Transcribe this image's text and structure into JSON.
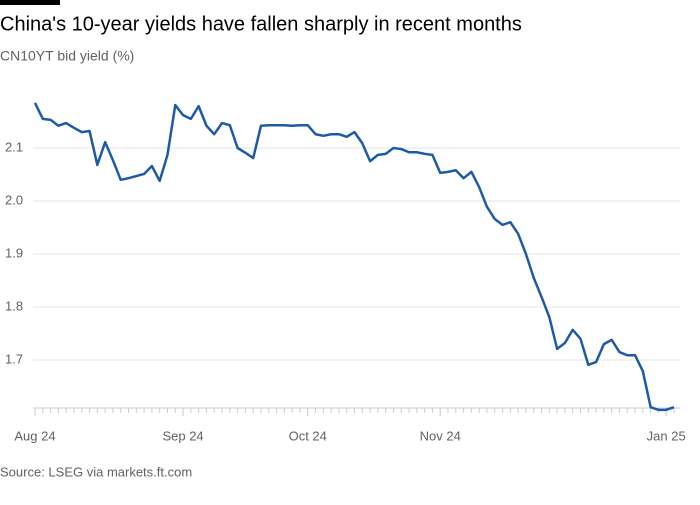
{
  "chart_data": {
    "type": "line",
    "title": "China's 10-year yields have fallen sharply in recent months",
    "subtitle": "CN10YT bid yield (%)",
    "source": "Source: LSEG via markets.ft.com",
    "categories": [
      "Aug 24",
      null,
      null,
      null,
      null,
      null,
      null,
      null,
      null,
      null,
      null,
      null,
      null,
      null,
      null,
      null,
      null,
      null,
      null,
      "Sep 24",
      null,
      null,
      null,
      null,
      null,
      null,
      null,
      null,
      null,
      null,
      null,
      null,
      null,
      null,
      null,
      "Oct 24",
      null,
      null,
      null,
      null,
      null,
      null,
      null,
      null,
      null,
      null,
      null,
      null,
      null,
      null,
      null,
      null,
      "Nov 24",
      null,
      null,
      null,
      null,
      null,
      null,
      null,
      null,
      null,
      null,
      null,
      null,
      null,
      null,
      null,
      null,
      null,
      null,
      null,
      null,
      null,
      null,
      null,
      null,
      null,
      null,
      null,
      null,
      "Jan 25",
      null
    ],
    "values": [
      2.185,
      2.155,
      2.153,
      2.142,
      2.147,
      2.138,
      2.13,
      2.132,
      2.068,
      2.111,
      2.077,
      2.04,
      2.043,
      2.047,
      2.051,
      2.066,
      2.038,
      2.087,
      2.181,
      2.162,
      2.155,
      2.179,
      2.142,
      2.126,
      2.147,
      2.143,
      2.1,
      2.091,
      2.081,
      2.142,
      2.143,
      2.143,
      2.143,
      2.142,
      2.143,
      2.143,
      2.126,
      2.123,
      2.126,
      2.126,
      2.121,
      2.13,
      2.109,
      2.075,
      2.087,
      2.089,
      2.1,
      2.098,
      2.092,
      2.092,
      2.089,
      2.087,
      2.053,
      2.055,
      2.058,
      2.043,
      2.055,
      2.026,
      1.989,
      1.966,
      1.955,
      1.96,
      1.938,
      1.9,
      1.855,
      1.819,
      1.781,
      1.721,
      1.732,
      1.757,
      1.74,
      1.691,
      1.696,
      1.73,
      1.738,
      1.715,
      1.709,
      1.709,
      1.679,
      1.611,
      1.606,
      1.606,
      1.611
    ],
    "color": "#1f5aa6",
    "ylim": [
      1.6,
      2.2
    ],
    "yticks": [
      1.7,
      1.8,
      1.9,
      {
        "value": 2,
        "label": "2.0"
      },
      2.1
    ],
    "grid": true
  }
}
